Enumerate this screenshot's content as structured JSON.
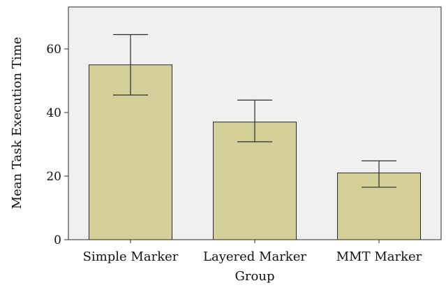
{
  "chart_data": {
    "type": "bar",
    "categories": [
      "Simple Marker",
      "Layered Marker",
      "MMT Marker"
    ],
    "values": [
      55,
      37,
      21
    ],
    "error_low": [
      45.5,
      30.8,
      16.5
    ],
    "error_high": [
      64.5,
      43.9,
      24.8
    ],
    "xlabel": "Group",
    "ylabel": "Mean Task Execution Time",
    "ylim": [
      0,
      75
    ],
    "yticks": [
      0,
      20,
      40,
      60
    ],
    "grid": false,
    "colors": {
      "bar_fill": "#d4cf98",
      "bar_stroke": "#2b2b2b",
      "plot_background": "#f0f0f0",
      "error_bar": "#2b2b2b"
    }
  }
}
